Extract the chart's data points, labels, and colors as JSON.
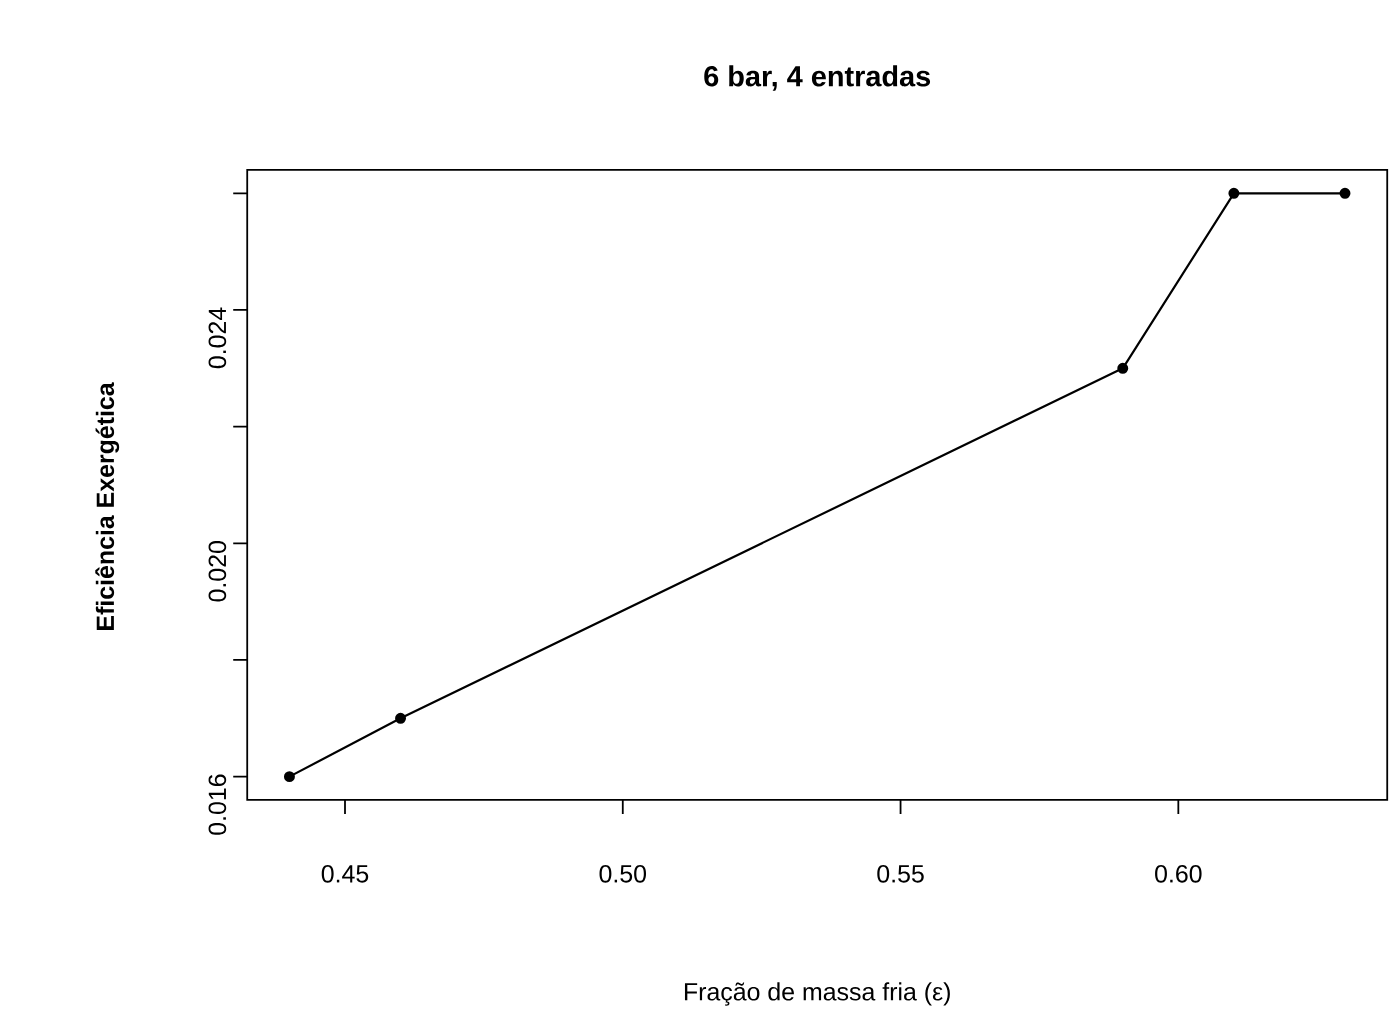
{
  "chart_data": {
    "type": "line",
    "title": "6 bar, 4 entradas",
    "xlabel": "Fração de massa fria (ε)",
    "ylabel": "Eficiência Exergética",
    "x": [
      0.44,
      0.46,
      0.59,
      0.61,
      0.63
    ],
    "series": [
      {
        "color": "#000000",
        "values": [
          0.016,
          0.017,
          0.023,
          0.026,
          0.026
        ]
      }
    ],
    "marker": "circle",
    "line_style": "solid",
    "grid": false,
    "xlim": [
      0.4324,
      0.6376
    ],
    "ylim": [
      0.0156,
      0.0264
    ],
    "xticks": [
      0.45,
      {
        "value": 0.5,
        "label": "0.50"
      },
      0.55,
      {
        "value": 0.6,
        "label": "0.60"
      }
    ],
    "yticks": [
      0.016,
      {
        "value": 0.018,
        "label": null
      },
      {
        "value": 0.02,
        "label": "0.020"
      },
      {
        "value": 0.022,
        "label": null
      },
      0.024,
      {
        "value": 0.026,
        "label": null
      }
    ]
  }
}
